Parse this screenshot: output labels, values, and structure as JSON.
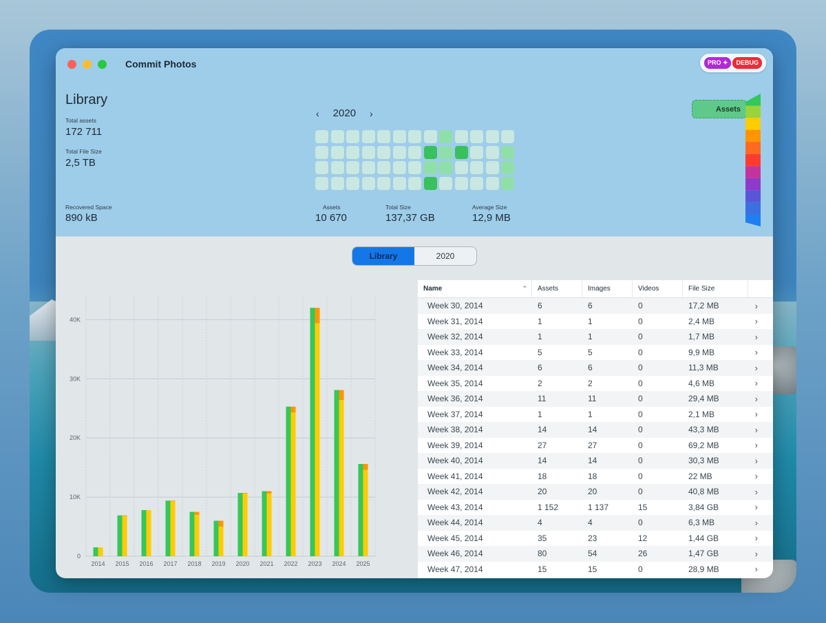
{
  "window": {
    "title": "Commit Photos"
  },
  "badges": {
    "pro": "PRO ✦",
    "debug": "DEBUG"
  },
  "library": {
    "title": "Library",
    "total_assets_label": "Total assets",
    "total_assets": "172 711",
    "total_size_label": "Total File Size",
    "total_size": "2,5 TB",
    "recovered_label": "Recovered Space",
    "recovered": "890 kB"
  },
  "year_nav": {
    "prev": "‹",
    "year": "2020",
    "next": "›"
  },
  "heatmap": {
    "levels": [
      [
        0,
        0,
        0,
        0,
        0,
        0,
        0,
        0,
        1,
        0,
        0,
        0,
        0
      ],
      [
        0,
        0,
        0,
        0,
        0,
        0,
        0,
        2,
        1,
        2,
        0,
        0,
        1
      ],
      [
        0,
        0,
        0,
        0,
        0,
        0,
        0,
        1,
        1,
        0,
        0,
        0,
        1
      ],
      [
        0,
        0,
        0,
        0,
        0,
        0,
        0,
        2,
        0,
        0,
        0,
        0,
        1
      ]
    ]
  },
  "year_stats": {
    "assets_label": "Assets",
    "assets": "10 670",
    "size_label": "Total Size",
    "size": "137,37 GB",
    "avg_label": "Average Size",
    "avg": "12,9 MB"
  },
  "sidebar_button": {
    "label": "Assets"
  },
  "rainbow_colors": [
    "#34c759",
    "#9ad33a",
    "#ffcc00",
    "#ff9500",
    "#ff6a1f",
    "#ff3b30",
    "#c3349e",
    "#8e3acb",
    "#5856d6",
    "#3c6fe0",
    "#1f7ef2"
  ],
  "segment": {
    "left": "Library",
    "right": "2020"
  },
  "chart_data": {
    "type": "bar",
    "categories": [
      "2014",
      "2015",
      "2016",
      "2017",
      "2018",
      "2019",
      "2020",
      "2021",
      "2022",
      "2023",
      "2024",
      "2025"
    ],
    "series": [
      {
        "color": "#34c759",
        "values": [
          1500,
          6900,
          7800,
          9400,
          7500,
          6000,
          10700,
          11000,
          25300,
          42000,
          28100,
          15600
        ]
      },
      {
        "color": "#ffcc00",
        "values": [
          1500,
          6800,
          7800,
          9300,
          7000,
          5000,
          10600,
          10600,
          24300,
          39400,
          26400,
          14600
        ]
      },
      {
        "color": "#ff9500",
        "values": [
          0,
          100,
          0,
          100,
          500,
          1000,
          100,
          400,
          1000,
          2600,
          1700,
          1000
        ]
      }
    ],
    "yticks": [
      "0",
      "10K",
      "20K",
      "30K",
      "40K"
    ],
    "ylim": [
      0,
      44000
    ]
  },
  "table": {
    "headers": {
      "name": "Name",
      "sort": "⌃",
      "assets": "Assets",
      "images": "Images",
      "videos": "Videos",
      "size": "File Size"
    },
    "rows": [
      {
        "name": "Week 30, 2014",
        "assets": "6",
        "images": "6",
        "videos": "0",
        "size": "17,2 MB"
      },
      {
        "name": "Week 31, 2014",
        "assets": "1",
        "images": "1",
        "videos": "0",
        "size": "2,4 MB"
      },
      {
        "name": "Week 32, 2014",
        "assets": "1",
        "images": "1",
        "videos": "0",
        "size": "1,7 MB"
      },
      {
        "name": "Week 33, 2014",
        "assets": "5",
        "images": "5",
        "videos": "0",
        "size": "9,9 MB"
      },
      {
        "name": "Week 34, 2014",
        "assets": "6",
        "images": "6",
        "videos": "0",
        "size": "11,3 MB"
      },
      {
        "name": "Week 35, 2014",
        "assets": "2",
        "images": "2",
        "videos": "0",
        "size": "4,6 MB"
      },
      {
        "name": "Week 36, 2014",
        "assets": "11",
        "images": "11",
        "videos": "0",
        "size": "29,4 MB"
      },
      {
        "name": "Week 37, 2014",
        "assets": "1",
        "images": "1",
        "videos": "0",
        "size": "2,1 MB"
      },
      {
        "name": "Week 38, 2014",
        "assets": "14",
        "images": "14",
        "videos": "0",
        "size": "43,3 MB"
      },
      {
        "name": "Week 39, 2014",
        "assets": "27",
        "images": "27",
        "videos": "0",
        "size": "69,2 MB"
      },
      {
        "name": "Week 40, 2014",
        "assets": "14",
        "images": "14",
        "videos": "0",
        "size": "30,3 MB"
      },
      {
        "name": "Week 41, 2014",
        "assets": "18",
        "images": "18",
        "videos": "0",
        "size": "22 MB"
      },
      {
        "name": "Week 42, 2014",
        "assets": "20",
        "images": "20",
        "videos": "0",
        "size": "40,8 MB"
      },
      {
        "name": "Week 43, 2014",
        "assets": "1 152",
        "images": "1 137",
        "videos": "15",
        "size": "3,84 GB"
      },
      {
        "name": "Week 44, 2014",
        "assets": "4",
        "images": "4",
        "videos": "0",
        "size": "6,3 MB"
      },
      {
        "name": "Week 45, 2014",
        "assets": "35",
        "images": "23",
        "videos": "12",
        "size": "1,44 GB"
      },
      {
        "name": "Week 46, 2014",
        "assets": "80",
        "images": "54",
        "videos": "26",
        "size": "1,47 GB"
      },
      {
        "name": "Week 47, 2014",
        "assets": "15",
        "images": "15",
        "videos": "0",
        "size": "28,9 MB"
      }
    ],
    "row_chevron": "›"
  }
}
